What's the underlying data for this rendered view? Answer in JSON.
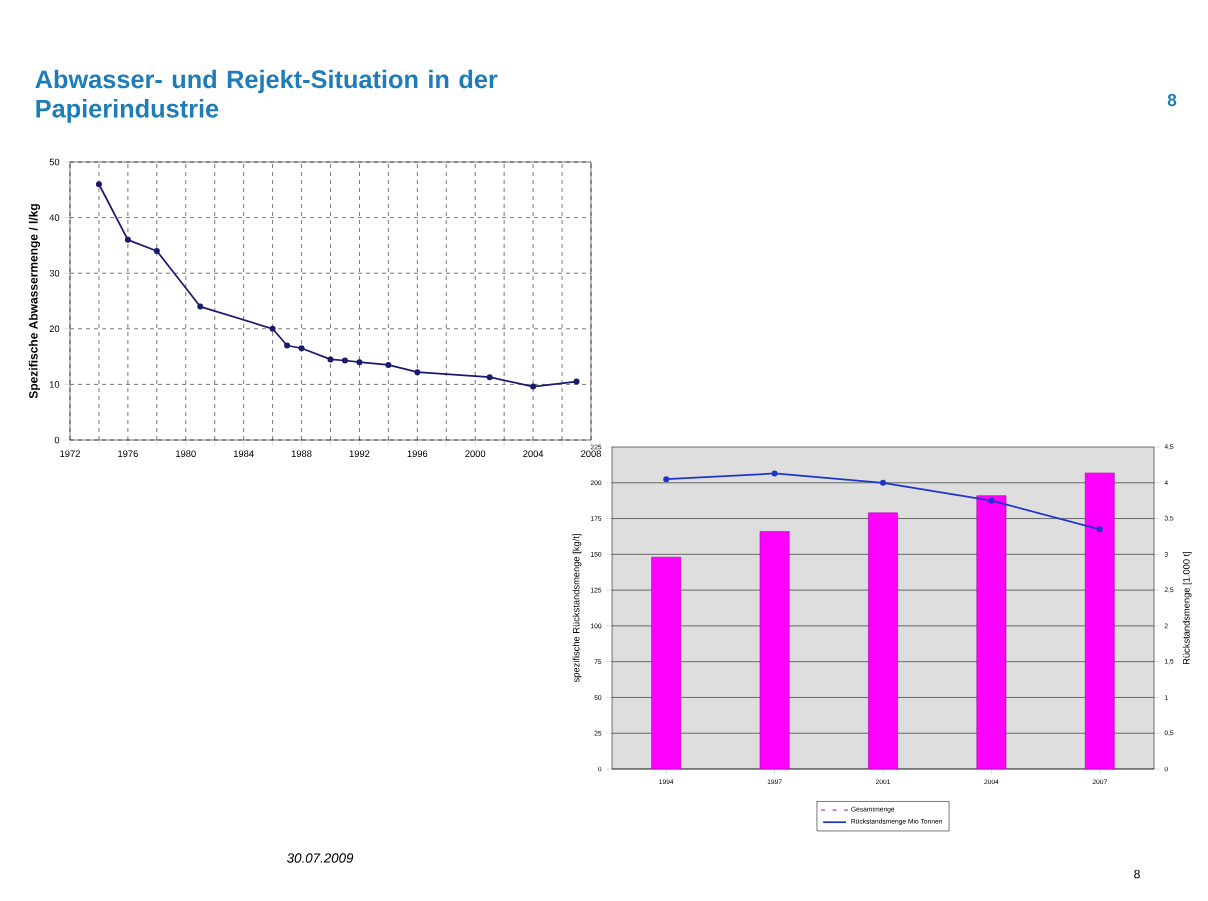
{
  "chart_data": [
    {
      "type": "line",
      "title": "Abwasser- und Rejekt-Situation in der Papierindustrie",
      "ylabel": "Spezifische Abwassermenge / l/kg",
      "x": [
        1974,
        1976,
        1978,
        1981,
        1986,
        1987,
        1988,
        1990,
        1991,
        1992,
        1994,
        1996,
        2001,
        2004,
        2007
      ],
      "series": [
        {
          "color": "#1a1a6e",
          "values": [
            46,
            36,
            34,
            24,
            20,
            17,
            16.5,
            14.5,
            14.3,
            14,
            13.5,
            12.2,
            11.3,
            9.6,
            10.5
          ]
        }
      ],
      "xlim": [
        1972,
        2008
      ],
      "ylim": [
        0,
        50
      ],
      "xticks": [
        1972,
        {
          "value": 1974,
          "label": null
        },
        1976,
        {
          "value": 1978,
          "label": null
        },
        1980,
        {
          "value": 1982,
          "label": null
        },
        1984,
        {
          "value": 1986,
          "label": null
        },
        1988,
        {
          "value": 1990,
          "label": null
        },
        1992,
        {
          "value": 1994,
          "label": null
        },
        1996,
        {
          "value": 1998,
          "label": null
        },
        2000,
        {
          "value": 2002,
          "label": null
        },
        2004,
        {
          "value": 2006,
          "label": null
        },
        2008
      ],
      "yticks": [
        0,
        10,
        20,
        30,
        40,
        50
      ],
      "grid": true,
      "marker": "circle",
      "legend": false,
      "annotations": [
        "30.07.2009",
        "8",
        "8"
      ]
    },
    {
      "type": "bar",
      "categories": [
        "1994",
        "1997",
        "2001",
        "2004",
        "2007"
      ],
      "series": [
        {
          "name": "Gesamtmenge",
          "color": "#ff00ff",
          "values": [
            148,
            166,
            179,
            191,
            207
          ]
        },
        {
          "name": "Rückstandsmenge Mio Tonnen",
          "type": "line",
          "axis": "y2",
          "color": "#1f35c8",
          "marker": "circle",
          "values": [
            4.05,
            4.13,
            4.0,
            3.75,
            3.35
          ]
        }
      ],
      "ylabel": "spezifische Rückstandsmenge [kg/t]",
      "y2label": "Rückstandsmenge [1.000 t]",
      "ylim": [
        0,
        225
      ],
      "yticks": [
        0,
        25,
        50,
        75,
        100,
        125,
        150,
        175,
        200,
        225
      ],
      "y2lim": [
        0,
        4.5
      ],
      "y2ticks": [
        0,
        {
          "value": 0.5,
          "label": "0,5"
        },
        1,
        {
          "value": 1.5,
          "label": "1,5"
        },
        2,
        {
          "value": 2.5,
          "label": "2,5"
        },
        3,
        {
          "value": 3.5,
          "label": "3,5"
        },
        4,
        {
          "value": 4.5,
          "label": "4,5"
        }
      ],
      "grid": "y",
      "legend": "bottom"
    }
  ]
}
